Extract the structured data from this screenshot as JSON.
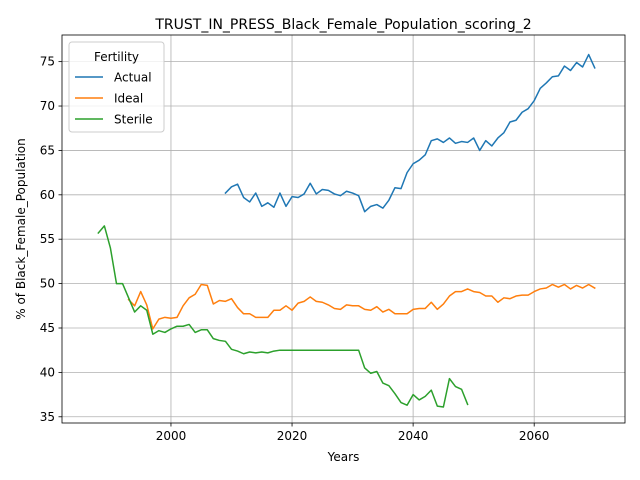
{
  "chart_data": {
    "type": "line",
    "title": "TRUST_IN_PRESS_Black_Female_Population_scoring_2",
    "xlabel": "Years",
    "ylabel": "% of Black_Female_Population",
    "xlim": [
      1982,
      2075
    ],
    "ylim": [
      34.3,
      78
    ],
    "xticks": [
      2000,
      2020,
      2040,
      2060
    ],
    "yticks": [
      35,
      40,
      45,
      50,
      55,
      60,
      65,
      70,
      75
    ],
    "grid": true,
    "legend": {
      "title": "Fertility",
      "position": "upper-left"
    },
    "colors": {
      "Actual": "#1f77b4",
      "Ideal": "#ff7f0e",
      "Sterile": "#2ca02c"
    },
    "series": [
      {
        "name": "Actual",
        "x": [
          2009,
          2010,
          2011,
          2012,
          2013,
          2014,
          2015,
          2016,
          2017,
          2018,
          2019,
          2020,
          2021,
          2022,
          2023,
          2024,
          2025,
          2026,
          2027,
          2028,
          2029,
          2030,
          2031,
          2032,
          2033,
          2034,
          2035,
          2036,
          2037,
          2038,
          2039,
          2040,
          2041,
          2042,
          2043,
          2044,
          2045,
          2046,
          2047,
          2048,
          2049,
          2050,
          2051,
          2052,
          2053,
          2054,
          2055,
          2056,
          2057,
          2058,
          2059,
          2060,
          2061,
          2062,
          2063,
          2064,
          2065,
          2066,
          2067,
          2068,
          2069,
          2070
        ],
        "values": [
          60.2,
          60.9,
          61.2,
          59.7,
          59.2,
          60.2,
          58.7,
          59.1,
          58.6,
          60.2,
          58.7,
          59.8,
          59.7,
          60.1,
          61.3,
          60.1,
          60.6,
          60.5,
          60.1,
          59.9,
          60.4,
          60.2,
          59.9,
          58.1,
          58.7,
          58.9,
          58.5,
          59.4,
          60.8,
          60.7,
          62.5,
          63.5,
          63.9,
          64.5,
          66.1,
          66.3,
          65.9,
          66.4,
          65.8,
          66.0,
          65.9,
          66.4,
          65.0,
          66.1,
          65.5,
          66.4,
          67.0,
          68.2,
          68.4,
          69.3,
          69.7,
          70.6,
          72.0,
          72.6,
          73.3,
          73.4,
          74.5,
          74.0,
          74.9,
          74.4,
          75.8,
          74.3
        ]
      },
      {
        "name": "Ideal",
        "x": [
          1993,
          1994,
          1995,
          1996,
          1997,
          1998,
          1999,
          2000,
          2001,
          2002,
          2003,
          2004,
          2005,
          2006,
          2007,
          2008,
          2009,
          2010,
          2011,
          2012,
          2013,
          2014,
          2015,
          2016,
          2017,
          2018,
          2019,
          2020,
          2021,
          2022,
          2023,
          2024,
          2025,
          2026,
          2027,
          2028,
          2029,
          2030,
          2031,
          2032,
          2033,
          2034,
          2035,
          2036,
          2037,
          2038,
          2039,
          2040,
          2041,
          2042,
          2043,
          2044,
          2045,
          2046,
          2047,
          2048,
          2049,
          2050,
          2051,
          2052,
          2053,
          2054,
          2055,
          2056,
          2057,
          2058,
          2059,
          2060,
          2061,
          2062,
          2063,
          2064,
          2065,
          2066,
          2067,
          2068,
          2069,
          2070
        ],
        "values": [
          48.2,
          47.5,
          49.1,
          47.6,
          44.9,
          46.0,
          46.2,
          46.1,
          46.2,
          47.5,
          48.4,
          48.8,
          49.9,
          49.8,
          47.7,
          48.1,
          48.0,
          48.3,
          47.3,
          46.6,
          46.6,
          46.2,
          46.2,
          46.2,
          47.0,
          47.0,
          47.5,
          47.0,
          47.8,
          48.0,
          48.5,
          48.0,
          47.9,
          47.6,
          47.2,
          47.1,
          47.6,
          47.5,
          47.5,
          47.1,
          47.0,
          47.4,
          46.8,
          47.1,
          46.6,
          46.6,
          46.6,
          47.1,
          47.2,
          47.2,
          47.9,
          47.1,
          47.7,
          48.6,
          49.1,
          49.1,
          49.4,
          49.1,
          49.0,
          48.6,
          48.6,
          47.9,
          48.4,
          48.3,
          48.6,
          48.7,
          48.7,
          49.1,
          49.4,
          49.5,
          49.9,
          49.6,
          49.9,
          49.4,
          49.8,
          49.5,
          49.9,
          49.5
        ]
      },
      {
        "name": "Sterile",
        "x": [
          1988,
          1989,
          1990,
          1991,
          1992,
          1993,
          1994,
          1995,
          1996,
          1997,
          1998,
          1999,
          2000,
          2001,
          2002,
          2003,
          2004,
          2005,
          2006,
          2007,
          2008,
          2009,
          2010,
          2011,
          2012,
          2013,
          2014,
          2015,
          2016,
          2017,
          2018,
          2019,
          2020,
          2021,
          2022,
          2023,
          2024,
          2025,
          2026,
          2027,
          2028,
          2029,
          2030,
          2031,
          2032,
          2033,
          2034,
          2035,
          2036,
          2037,
          2038,
          2039,
          2040,
          2041,
          2042,
          2043,
          2044,
          2045,
          2046,
          2047,
          2048,
          2049
        ],
        "values": [
          55.7,
          56.5,
          54.0,
          50.0,
          50.0,
          48.4,
          46.8,
          47.5,
          47.0,
          44.3,
          44.7,
          44.5,
          44.9,
          45.2,
          45.2,
          45.4,
          44.5,
          44.8,
          44.8,
          43.8,
          43.6,
          43.5,
          42.6,
          42.4,
          42.1,
          42.3,
          42.2,
          42.3,
          42.2,
          42.4,
          42.5,
          42.5,
          42.5,
          42.5,
          42.5,
          42.5,
          42.5,
          42.5,
          42.5,
          42.5,
          42.5,
          42.5,
          42.5,
          42.5,
          40.5,
          39.9,
          40.1,
          38.8,
          38.5,
          37.6,
          36.6,
          36.3,
          37.5,
          36.9,
          37.3,
          38.0,
          36.2,
          36.1,
          39.3,
          38.4,
          38.1,
          36.4
        ]
      }
    ]
  }
}
